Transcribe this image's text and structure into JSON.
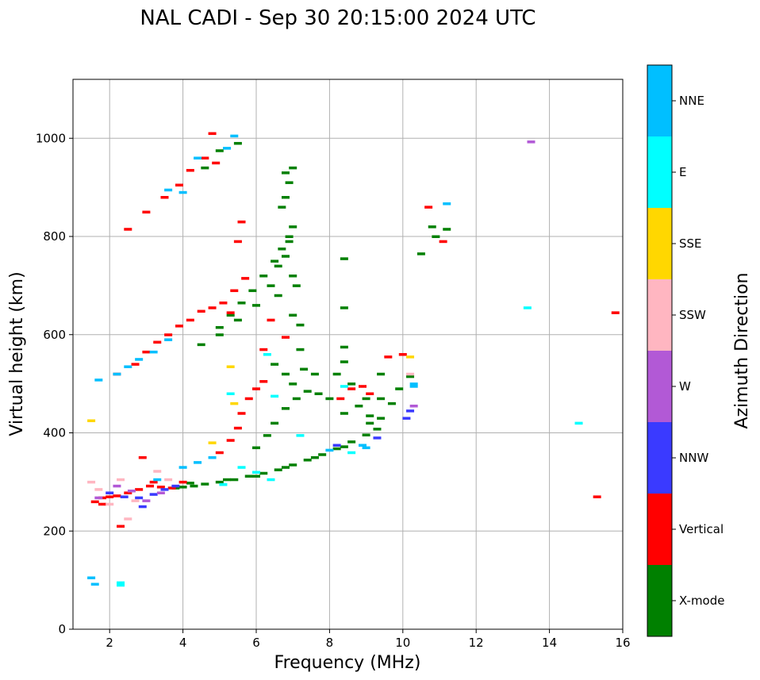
{
  "chart_data": {
    "type": "scatter",
    "title": "NAL CADI - Sep 30 20:15:00 2024 UTC",
    "xlabel": "Frequency (MHz)",
    "ylabel": "Virtual height (km)",
    "xlim": [
      1,
      16
    ],
    "ylim": [
      0,
      1120
    ],
    "xticks": [
      2,
      4,
      6,
      8,
      10,
      12,
      14,
      16
    ],
    "yticks": [
      0,
      200,
      400,
      600,
      800,
      1000
    ],
    "grid": true,
    "colorbar": {
      "title": "Azimuth Direction",
      "categories": [
        {
          "label": "X-mode",
          "color": "#008000"
        },
        {
          "label": "Vertical",
          "color": "#ff0000"
        },
        {
          "label": "NNW",
          "color": "#3a3aff"
        },
        {
          "label": "W",
          "color": "#b259d6"
        },
        {
          "label": "SSW",
          "color": "#ffb6c1"
        },
        {
          "label": "SSE",
          "color": "#ffd700"
        },
        {
          "label": "E",
          "color": "#00ffff"
        },
        {
          "label": "NNE",
          "color": "#00bfff"
        }
      ]
    },
    "series": [
      {
        "name": "X-mode",
        "points": [
          [
            4.0,
            290
          ],
          [
            4.3,
            292
          ],
          [
            4.6,
            296
          ],
          [
            5.0,
            300
          ],
          [
            5.4,
            305
          ],
          [
            5.8,
            312
          ],
          [
            6.2,
            318
          ],
          [
            6.6,
            325
          ],
          [
            7.0,
            335
          ],
          [
            7.4,
            345
          ],
          [
            7.8,
            356
          ],
          [
            8.2,
            368
          ],
          [
            8.6,
            382
          ],
          [
            9.0,
            396
          ],
          [
            9.3,
            408
          ],
          [
            3.8,
            288
          ],
          [
            4.2,
            298
          ],
          [
            5.2,
            305
          ],
          [
            6.0,
            312
          ],
          [
            6.8,
            330
          ],
          [
            7.6,
            350
          ],
          [
            8.4,
            372
          ],
          [
            6.0,
            370
          ],
          [
            6.3,
            395
          ],
          [
            6.5,
            420
          ],
          [
            6.8,
            450
          ],
          [
            7.1,
            470
          ],
          [
            7.4,
            485
          ],
          [
            7.7,
            480
          ],
          [
            8.0,
            470
          ],
          [
            6.5,
            540
          ],
          [
            6.8,
            520
          ],
          [
            7.0,
            500
          ],
          [
            7.3,
            530
          ],
          [
            7.6,
            520
          ],
          [
            8.2,
            520
          ],
          [
            8.6,
            500
          ],
          [
            9.0,
            470
          ],
          [
            9.4,
            470
          ],
          [
            8.4,
            440
          ],
          [
            8.8,
            455
          ],
          [
            9.1,
            420
          ],
          [
            4.5,
            580
          ],
          [
            5.0,
            615
          ],
          [
            5.3,
            640
          ],
          [
            5.6,
            665
          ],
          [
            5.9,
            690
          ],
          [
            6.2,
            720
          ],
          [
            6.5,
            750
          ],
          [
            6.7,
            775
          ],
          [
            6.9,
            800
          ],
          [
            5.0,
            600
          ],
          [
            5.5,
            630
          ],
          [
            6.0,
            660
          ],
          [
            6.4,
            700
          ],
          [
            6.6,
            740
          ],
          [
            6.8,
            760
          ],
          [
            6.7,
            860
          ],
          [
            6.8,
            880
          ],
          [
            6.9,
            910
          ],
          [
            7.0,
            940
          ],
          [
            6.8,
            930
          ],
          [
            7.0,
            820
          ],
          [
            6.9,
            790
          ],
          [
            7.1,
            700
          ],
          [
            7.2,
            620
          ],
          [
            7.2,
            570
          ],
          [
            7.0,
            640
          ],
          [
            8.4,
            755
          ],
          [
            8.4,
            655
          ],
          [
            8.4,
            575
          ],
          [
            8.4,
            545
          ],
          [
            7.0,
            720
          ],
          [
            6.6,
            680
          ],
          [
            4.6,
            940
          ],
          [
            5.0,
            975
          ],
          [
            5.5,
            990
          ],
          [
            9.9,
            490
          ],
          [
            10.2,
            515
          ],
          [
            10.8,
            820
          ],
          [
            10.5,
            765
          ],
          [
            11.2,
            815
          ],
          [
            10.9,
            800
          ],
          [
            9.4,
            430
          ],
          [
            9.4,
            520
          ],
          [
            9.7,
            460
          ],
          [
            9.1,
            435
          ]
        ]
      },
      {
        "name": "Vertical",
        "points": [
          [
            1.6,
            260
          ],
          [
            1.8,
            268
          ],
          [
            2.0,
            270
          ],
          [
            2.2,
            272
          ],
          [
            2.5,
            278
          ],
          [
            2.8,
            285
          ],
          [
            3.1,
            292
          ],
          [
            3.4,
            290
          ],
          [
            3.7,
            288
          ],
          [
            4.0,
            300
          ],
          [
            2.3,
            210
          ],
          [
            1.8,
            255
          ],
          [
            3.0,
            565
          ],
          [
            3.3,
            585
          ],
          [
            3.6,
            600
          ],
          [
            3.9,
            618
          ],
          [
            4.2,
            630
          ],
          [
            4.5,
            648
          ],
          [
            4.8,
            655
          ],
          [
            5.1,
            665
          ],
          [
            5.4,
            690
          ],
          [
            5.7,
            715
          ],
          [
            5.5,
            790
          ],
          [
            2.2,
            520
          ],
          [
            2.7,
            540
          ],
          [
            2.5,
            815
          ],
          [
            3.0,
            850
          ],
          [
            3.5,
            880
          ],
          [
            3.9,
            905
          ],
          [
            4.2,
            935
          ],
          [
            4.6,
            960
          ],
          [
            4.8,
            1010
          ],
          [
            4.9,
            950
          ],
          [
            5.3,
            645
          ],
          [
            5.0,
            360
          ],
          [
            5.3,
            385
          ],
          [
            5.5,
            410
          ],
          [
            5.6,
            440
          ],
          [
            5.8,
            470
          ],
          [
            6.0,
            490
          ],
          [
            6.2,
            505
          ],
          [
            6.2,
            570
          ],
          [
            5.6,
            830
          ],
          [
            6.4,
            630
          ],
          [
            6.8,
            595
          ],
          [
            8.3,
            470
          ],
          [
            8.6,
            490
          ],
          [
            8.9,
            495
          ],
          [
            9.1,
            480
          ],
          [
            9.6,
            555
          ],
          [
            10.0,
            560
          ],
          [
            10.7,
            860
          ],
          [
            11.1,
            790
          ],
          [
            15.3,
            270
          ],
          [
            15.8,
            645
          ],
          [
            2.9,
            350
          ],
          [
            3.2,
            300
          ]
        ]
      },
      {
        "name": "NNW",
        "points": [
          [
            2.4,
            270
          ],
          [
            2.8,
            268
          ],
          [
            3.2,
            275
          ],
          [
            3.5,
            285
          ],
          [
            3.8,
            292
          ],
          [
            2.9,
            250
          ],
          [
            10.1,
            430
          ],
          [
            10.2,
            445
          ],
          [
            9.3,
            390
          ],
          [
            8.2,
            375
          ],
          [
            2.0,
            278
          ]
        ]
      },
      {
        "name": "W",
        "points": [
          [
            1.7,
            268
          ],
          [
            2.6,
            282
          ],
          [
            3.0,
            262
          ],
          [
            3.4,
            278
          ],
          [
            13.5,
            993
          ],
          [
            10.3,
            455
          ],
          [
            2.2,
            292
          ]
        ]
      },
      {
        "name": "SSW",
        "points": [
          [
            1.5,
            300
          ],
          [
            1.7,
            285
          ],
          [
            2.0,
            255
          ],
          [
            2.3,
            305
          ],
          [
            2.7,
            262
          ],
          [
            3.3,
            322
          ],
          [
            2.5,
            225
          ],
          [
            10.2,
            520
          ],
          [
            3.6,
            305
          ]
        ]
      },
      {
        "name": "SSE",
        "points": [
          [
            1.5,
            425
          ],
          [
            5.3,
            535
          ],
          [
            5.4,
            460
          ],
          [
            10.2,
            555
          ],
          [
            4.8,
            380
          ]
        ]
      },
      {
        "name": "E",
        "points": [
          [
            2.3,
            90
          ],
          [
            5.1,
            295
          ],
          [
            5.6,
            330
          ],
          [
            6.0,
            320
          ],
          [
            6.4,
            305
          ],
          [
            7.2,
            395
          ],
          [
            8.4,
            495
          ],
          [
            13.4,
            655
          ],
          [
            14.8,
            420
          ],
          [
            5.3,
            480
          ],
          [
            6.5,
            475
          ],
          [
            6.3,
            560
          ],
          [
            8.6,
            360
          ],
          [
            2.3,
            95
          ]
        ]
      },
      {
        "name": "NNE",
        "points": [
          [
            1.5,
            105
          ],
          [
            1.6,
            92
          ],
          [
            1.7,
            508
          ],
          [
            2.2,
            520
          ],
          [
            2.5,
            535
          ],
          [
            2.8,
            550
          ],
          [
            3.2,
            565
          ],
          [
            3.6,
            590
          ],
          [
            4.0,
            330
          ],
          [
            4.4,
            340
          ],
          [
            4.8,
            350
          ],
          [
            5.2,
            980
          ],
          [
            5.4,
            1005
          ],
          [
            4.0,
            890
          ],
          [
            3.6,
            895
          ],
          [
            4.4,
            960
          ],
          [
            8.0,
            365
          ],
          [
            8.9,
            375
          ],
          [
            9.0,
            370
          ],
          [
            11.2,
            867
          ],
          [
            10.3,
            495
          ],
          [
            10.3,
            500
          ],
          [
            3.3,
            305
          ]
        ]
      }
    ]
  }
}
